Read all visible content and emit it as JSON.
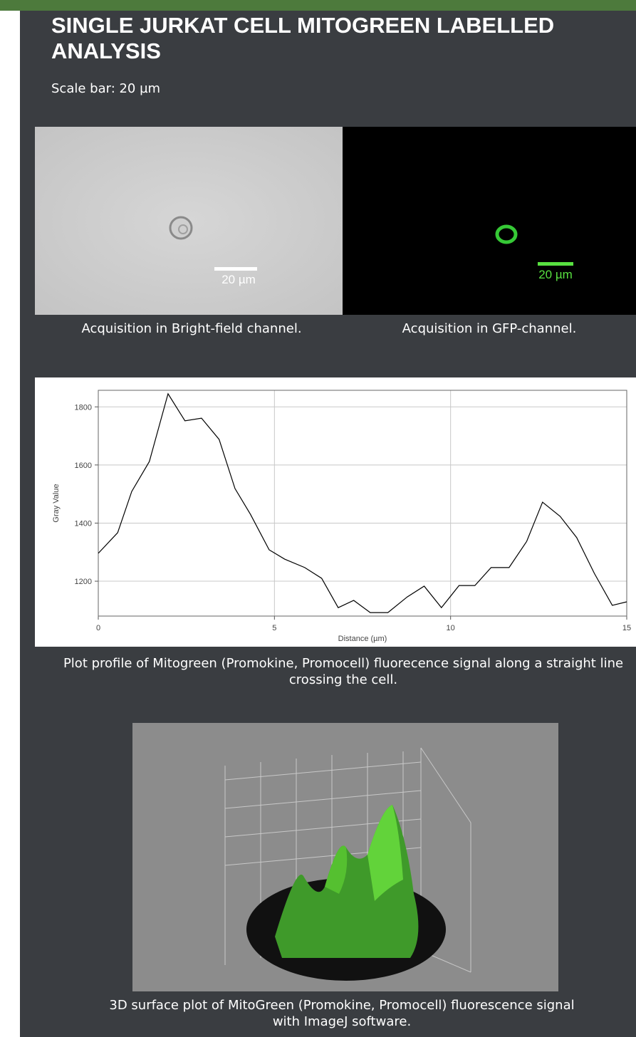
{
  "header": {
    "title": "SINGLE JURKAT CELL MITOGREEN LABELLED ANALYSIS",
    "subtitle": "Scale bar: 20 µm"
  },
  "images": [
    {
      "scale_label": "20 µm",
      "caption": "Acquisition in Bright-field channel."
    },
    {
      "scale_label": "20 µm",
      "caption": "Acquisition in GFP-channel."
    }
  ],
  "chart_data": {
    "type": "line",
    "xlabel": "Distance (µm)",
    "ylabel": "Gray Value",
    "x": [
      0,
      0.55,
      0.95,
      1.45,
      1.98,
      2.46,
      2.93,
      3.43,
      3.88,
      4.32,
      4.85,
      5.29,
      5.86,
      6.34,
      6.81,
      7.25,
      7.72,
      8.22,
      8.77,
      9.25,
      9.74,
      10.24,
      10.69,
      11.15,
      11.66,
      12.16,
      12.61,
      13.11,
      13.58,
      14.08,
      14.59,
      15
    ],
    "series": [
      {
        "color": "#000000",
        "values": [
          1296,
          1367,
          1509,
          1612,
          1845,
          1752,
          1761,
          1688,
          1519,
          1430,
          1308,
          1276,
          1247,
          1210,
          1109,
          1134,
          1092,
          1092,
          1146,
          1183,
          1109,
          1185,
          1185,
          1247,
          1247,
          1337,
          1472,
          1423,
          1350,
          1227,
          1117,
          1129
        ]
      }
    ],
    "xlim": [
      0,
      15
    ],
    "xticks": [
      0,
      5,
      10,
      15
    ],
    "ylim": [
      1080,
      1857
    ],
    "yticks": [
      1200,
      1400,
      1600,
      1800
    ],
    "grid": true
  },
  "plot_caption": "Plot profile of Mitogreen (Promokine, Promocell) fluorecence signal along a straight line crossing the cell.",
  "surface_caption": "3D surface plot of MitoGreen (Promokine, Promocell) fluorescence signal with ImageJ software."
}
